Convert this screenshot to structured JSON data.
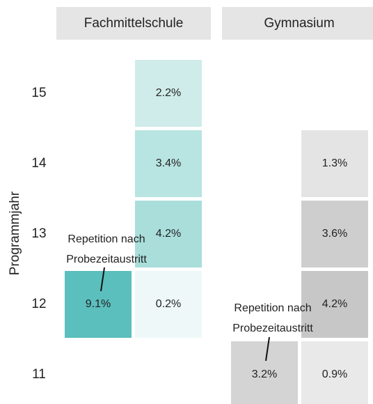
{
  "chart_data": {
    "type": "tile",
    "ylabel": "Programmjahr",
    "y_categories": [
      "11",
      "12",
      "13",
      "14",
      "15"
    ],
    "facets": [
      {
        "title": "Fachmittelschule",
        "x_categories": [
          null,
          null
        ],
        "values": [
          [
            null,
            null
          ],
          [
            9.1,
            0.2
          ],
          [
            null,
            4.2
          ],
          [
            null,
            3.4
          ],
          [
            null,
            2.2
          ]
        ],
        "value_labels": [
          [
            null,
            null
          ],
          [
            "9.1%",
            "0.2%"
          ],
          [
            null,
            "4.2%"
          ],
          [
            null,
            "3.4%"
          ],
          [
            null,
            "2.2%"
          ]
        ],
        "colors": [
          [
            null,
            null
          ],
          [
            "#5bbfbd",
            "#eef8f8"
          ],
          [
            null,
            "#a9dedb"
          ],
          [
            null,
            "#b8e4e1"
          ],
          [
            null,
            "#cfecea"
          ]
        ],
        "annotation": [
          "Repetition nach",
          "Probezeitaustritt"
        ]
      },
      {
        "title": "Gymnasium",
        "x_categories": [
          null,
          null
        ],
        "values": [
          [
            3.2,
            0.9
          ],
          [
            null,
            4.2
          ],
          [
            null,
            3.6
          ],
          [
            null,
            1.3
          ],
          [
            null,
            null
          ]
        ],
        "value_labels": [
          [
            "3.2%",
            "0.9%"
          ],
          [
            null,
            "4.2%"
          ],
          [
            null,
            "3.6%"
          ],
          [
            null,
            "1.3%"
          ],
          [
            null,
            null
          ]
        ],
        "colors": [
          [
            "#d4d4d4",
            "#e9e9e9"
          ],
          [
            null,
            "#c7c7c7"
          ],
          [
            null,
            "#cecece"
          ],
          [
            null,
            "#e4e4e4"
          ],
          [
            null,
            null
          ]
        ],
        "annotation": [
          "Repetition nach",
          "Probezeitaustritt"
        ]
      }
    ]
  }
}
